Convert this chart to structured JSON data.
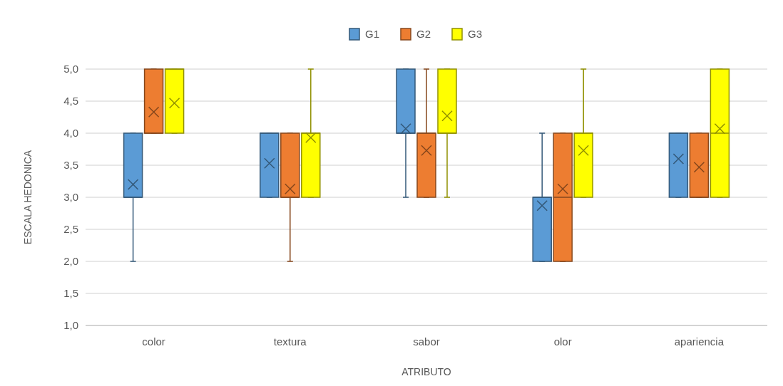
{
  "chart_data": {
    "type": "box",
    "xlabel": "ATRIBUTO",
    "ylabel": "ESCALA HEDONICA",
    "categories": [
      "color",
      "textura",
      "sabor",
      "olor",
      "apariencia"
    ],
    "series": [
      {
        "name": "G1",
        "color": "#5b9bd5",
        "boxes": [
          {
            "low": 2,
            "q1": 3,
            "median": 3,
            "q3": 4,
            "high": 4,
            "mean": 3.2
          },
          {
            "low": 3,
            "q1": 3,
            "median": 4,
            "q3": 4,
            "high": 4,
            "mean": 3.53
          },
          {
            "low": 3,
            "q1": 4,
            "median": 4,
            "q3": 5,
            "high": 5,
            "mean": 4.07
          },
          {
            "low": 2,
            "q1": 2,
            "median": 3,
            "q3": 3,
            "high": 4,
            "mean": 2.87
          },
          {
            "low": 3,
            "q1": 3,
            "median": 4,
            "q3": 4,
            "high": 4,
            "mean": 3.6
          }
        ]
      },
      {
        "name": "G2",
        "color": "#ed7d31",
        "boxes": [
          {
            "low": 4,
            "q1": 4,
            "median": 4,
            "q3": 5,
            "high": 5,
            "mean": 4.33
          },
          {
            "low": 2,
            "q1": 3,
            "median": 3,
            "q3": 4,
            "high": 4,
            "mean": 3.13
          },
          {
            "low": 3,
            "q1": 3,
            "median": 4,
            "q3": 4,
            "high": 5,
            "mean": 3.73
          },
          {
            "low": 2,
            "q1": 2,
            "median": 3,
            "q3": 4,
            "high": 4,
            "mean": 3.13
          },
          {
            "low": 3,
            "q1": 3,
            "median": 3,
            "q3": 4,
            "high": 4,
            "mean": 3.47
          }
        ]
      },
      {
        "name": "G3",
        "color": "#ffff00",
        "boxes": [
          {
            "low": 4,
            "q1": 4,
            "median": 5,
            "q3": 5,
            "high": 5,
            "mean": 4.47
          },
          {
            "low": 3,
            "q1": 3,
            "median": 4,
            "q3": 4,
            "high": 5,
            "mean": 3.93
          },
          {
            "low": 3,
            "q1": 4,
            "median": 4,
            "q3": 5,
            "high": 5,
            "mean": 4.27
          },
          {
            "low": 3,
            "q1": 3,
            "median": 4,
            "q3": 4,
            "high": 5,
            "mean": 3.73
          },
          {
            "low": 3,
            "q1": 3,
            "median": 4,
            "q3": 5,
            "high": 5,
            "mean": 4.07
          }
        ]
      }
    ],
    "ylim": [
      1,
      5
    ],
    "yticks": [
      {
        "value": 1,
        "label": "1,0"
      },
      {
        "value": 1.5,
        "label": "1,5"
      },
      {
        "value": 2,
        "label": "2,0"
      },
      {
        "value": 2.5,
        "label": "2,5"
      },
      {
        "value": 3,
        "label": "3,0"
      },
      {
        "value": 3.5,
        "label": "3,5"
      },
      {
        "value": 4,
        "label": "4,0"
      },
      {
        "value": 4.5,
        "label": "4,5"
      },
      {
        "value": 5,
        "label": "5,0"
      }
    ],
    "grid": true,
    "legend": "top"
  }
}
